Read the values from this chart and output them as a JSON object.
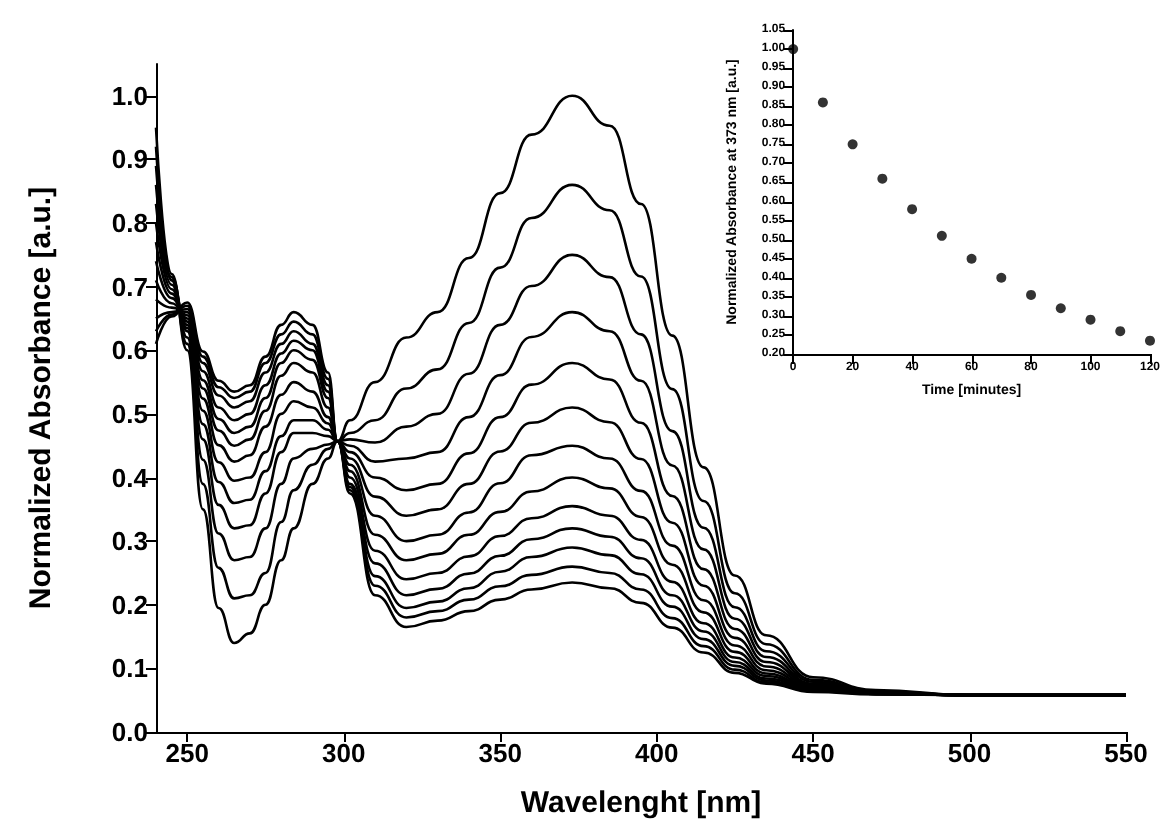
{
  "chart_data": [
    {
      "type": "line",
      "xlabel": "Wavelenght [nm]",
      "ylabel": "Normalized Absorbance [a.u.]",
      "x": [
        240,
        245,
        250,
        255,
        260,
        265,
        270,
        275,
        280,
        284,
        290,
        295,
        298,
        302,
        310,
        320,
        330,
        340,
        350,
        360,
        373,
        385,
        395,
        405,
        415,
        425,
        435,
        450,
        470,
        500,
        550
      ],
      "xlim": [
        240,
        550
      ],
      "xticks": [
        250,
        300,
        350,
        400,
        450,
        500,
        550
      ],
      "ylim": [
        0,
        1.05
      ],
      "yticks": [
        {
          "value": 0,
          "label": "0.0"
        },
        0.1,
        0.2,
        0.3,
        0.4,
        0.5,
        0.6,
        0.7,
        0.8,
        0.9,
        {
          "value": 1,
          "label": "1.0"
        }
      ],
      "grid": false,
      "marker": "none",
      "series": [
        {
          "color": "#000000",
          "values": [
            0.95,
            0.72,
            0.6,
            0.35,
            0.195,
            0.14,
            0.155,
            0.2,
            0.27,
            0.32,
            0.39,
            0.43,
            0.457,
            0.49,
            0.55,
            0.62,
            0.66,
            0.745,
            0.847,
            0.939,
            1.0,
            0.953,
            0.83,
            0.623,
            0.416,
            0.246,
            0.152,
            0.086,
            0.066,
            0.058,
            0.058
          ]
        },
        {
          "color": "#000000",
          "values": [
            0.92,
            0.71,
            0.61,
            0.39,
            0.258,
            0.21,
            0.215,
            0.25,
            0.33,
            0.38,
            0.42,
            0.445,
            0.457,
            0.47,
            0.49,
            0.54,
            0.57,
            0.643,
            0.73,
            0.808,
            0.86,
            0.82,
            0.716,
            0.539,
            0.363,
            0.218,
            0.138,
            0.082,
            0.064,
            0.058,
            0.058
          ]
        },
        {
          "color": "#000000",
          "values": [
            0.89,
            0.715,
            0.62,
            0.428,
            0.312,
            0.27,
            0.275,
            0.32,
            0.39,
            0.43,
            0.445,
            0.452,
            0.457,
            0.46,
            0.455,
            0.48,
            0.5,
            0.563,
            0.64,
            0.701,
            0.75,
            0.715,
            0.625,
            0.473,
            0.321,
            0.196,
            0.127,
            0.079,
            0.064,
            0.058,
            0.058
          ]
        },
        {
          "color": "#000000",
          "values": [
            0.86,
            0.71,
            0.63,
            0.46,
            0.357,
            0.32,
            0.325,
            0.375,
            0.44,
            0.47,
            0.47,
            0.465,
            0.457,
            0.45,
            0.425,
            0.43,
            0.44,
            0.495,
            0.561,
            0.621,
            0.66,
            0.63,
            0.552,
            0.419,
            0.287,
            0.178,
            0.118,
            0.076,
            0.063,
            0.058,
            0.058
          ]
        },
        {
          "color": "#000000",
          "values": [
            0.83,
            0.703,
            0.635,
            0.484,
            0.393,
            0.36,
            0.365,
            0.41,
            0.465,
            0.49,
            0.49,
            0.475,
            0.457,
            0.44,
            0.4,
            0.38,
            0.39,
            0.438,
            0.495,
            0.546,
            0.58,
            0.554,
            0.486,
            0.371,
            0.256,
            0.162,
            0.11,
            0.074,
            0.062,
            0.058,
            0.058
          ]
        },
        {
          "color": "#000000",
          "values": [
            0.8,
            0.696,
            0.64,
            0.505,
            0.424,
            0.395,
            0.4,
            0.44,
            0.5,
            0.52,
            0.51,
            0.485,
            0.457,
            0.43,
            0.37,
            0.34,
            0.35,
            0.39,
            0.441,
            0.486,
            0.51,
            0.487,
            0.429,
            0.329,
            0.23,
            0.148,
            0.103,
            0.072,
            0.062,
            0.058,
            0.058
          ]
        },
        {
          "color": "#000000",
          "values": [
            0.77,
            0.689,
            0.645,
            0.524,
            0.451,
            0.425,
            0.435,
            0.48,
            0.53,
            0.55,
            0.535,
            0.495,
            0.457,
            0.42,
            0.34,
            0.3,
            0.31,
            0.345,
            0.391,
            0.435,
            0.45,
            0.43,
            0.379,
            0.293,
            0.207,
            0.136,
            0.097,
            0.07,
            0.061,
            0.058,
            0.058
          ]
        },
        {
          "color": "#000000",
          "values": [
            0.74,
            0.682,
            0.65,
            0.54,
            0.474,
            0.45,
            0.46,
            0.505,
            0.56,
            0.58,
            0.565,
            0.51,
            0.457,
            0.41,
            0.31,
            0.27,
            0.28,
            0.31,
            0.346,
            0.378,
            0.4,
            0.383,
            0.338,
            0.263,
            0.188,
            0.126,
            0.092,
            0.068,
            0.061,
            0.058,
            0.058
          ]
        },
        {
          "color": "#000000",
          "values": [
            0.71,
            0.674,
            0.655,
            0.553,
            0.492,
            0.47,
            0.48,
            0.525,
            0.58,
            0.6,
            0.585,
            0.525,
            0.457,
            0.4,
            0.285,
            0.24,
            0.25,
            0.276,
            0.308,
            0.336,
            0.355,
            0.34,
            0.302,
            0.236,
            0.171,
            0.117,
            0.088,
            0.067,
            0.06,
            0.058,
            0.058
          ]
        },
        {
          "color": "#000000",
          "values": [
            0.68,
            0.667,
            0.66,
            0.567,
            0.51,
            0.49,
            0.5,
            0.545,
            0.595,
            0.615,
            0.6,
            0.535,
            0.457,
            0.39,
            0.265,
            0.215,
            0.225,
            0.249,
            0.277,
            0.303,
            0.32,
            0.307,
            0.273,
            0.215,
            0.158,
            0.11,
            0.084,
            0.066,
            0.06,
            0.058,
            0.058
          ]
        },
        {
          "color": "#000000",
          "values": [
            0.65,
            0.66,
            0.665,
            0.58,
            0.529,
            0.51,
            0.52,
            0.565,
            0.61,
            0.63,
            0.61,
            0.545,
            0.457,
            0.385,
            0.245,
            0.195,
            0.205,
            0.226,
            0.252,
            0.275,
            0.29,
            0.278,
            0.248,
            0.197,
            0.146,
            0.104,
            0.081,
            0.065,
            0.06,
            0.058,
            0.058
          ]
        },
        {
          "color": "#000000",
          "values": [
            0.63,
            0.656,
            0.67,
            0.59,
            0.542,
            0.525,
            0.535,
            0.58,
            0.625,
            0.645,
            0.625,
            0.555,
            0.457,
            0.38,
            0.23,
            0.18,
            0.19,
            0.208,
            0.229,
            0.247,
            0.26,
            0.25,
            0.224,
            0.179,
            0.135,
            0.098,
            0.078,
            0.064,
            0.06,
            0.058,
            0.058
          ]
        },
        {
          "color": "#000000",
          "values": [
            0.61,
            0.653,
            0.675,
            0.598,
            0.552,
            0.535,
            0.545,
            0.59,
            0.64,
            0.66,
            0.64,
            0.565,
            0.457,
            0.375,
            0.215,
            0.165,
            0.175,
            0.19,
            0.208,
            0.224,
            0.235,
            0.226,
            0.203,
            0.164,
            0.125,
            0.093,
            0.076,
            0.063,
            0.059,
            0.058,
            0.058
          ]
        }
      ]
    },
    {
      "type": "scatter",
      "xlabel": "Time [minutes]",
      "ylabel": "Normalized Absorbance at 373 nm [a.u.]",
      "x": [
        0,
        10,
        20,
        30,
        40,
        50,
        60,
        70,
        80,
        90,
        100,
        110,
        120
      ],
      "values": [
        1.0,
        0.86,
        0.75,
        0.66,
        0.58,
        0.51,
        0.45,
        0.4,
        0.355,
        0.32,
        0.29,
        0.26,
        0.235
      ],
      "color": "#000000",
      "xlim": [
        0,
        120
      ],
      "xticks": [
        0,
        20,
        40,
        60,
        80,
        100,
        120
      ],
      "ylim": [
        0.2,
        1.05
      ],
      "yticks": [
        {
          "value": 0.2,
          "label": "0.20"
        },
        {
          "value": 0.25,
          "label": "0.25"
        },
        {
          "value": 0.3,
          "label": "0.30"
        },
        {
          "value": 0.35,
          "label": "0.35"
        },
        {
          "value": 0.4,
          "label": "0.40"
        },
        {
          "value": 0.45,
          "label": "0.45"
        },
        {
          "value": 0.5,
          "label": "0.50"
        },
        {
          "value": 0.55,
          "label": "0.55"
        },
        {
          "value": 0.6,
          "label": "0.60"
        },
        {
          "value": 0.65,
          "label": "0.65"
        },
        {
          "value": 0.7,
          "label": "0.70"
        },
        {
          "value": 0.75,
          "label": "0.75"
        },
        {
          "value": 0.8,
          "label": "0.80"
        },
        {
          "value": 0.85,
          "label": "0.85"
        },
        {
          "value": 0.9,
          "label": "0.90"
        },
        {
          "value": 0.95,
          "label": "0.95"
        },
        {
          "value": 1,
          "label": "1.00"
        },
        {
          "value": 1.05,
          "label": "1.05"
        }
      ],
      "grid": false,
      "marker": "circle"
    }
  ]
}
